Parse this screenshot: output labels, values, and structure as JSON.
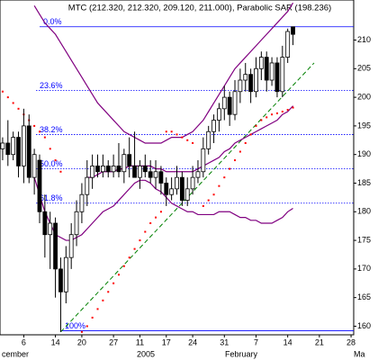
{
  "chart_data": {
    "type": "candlestick",
    "title": "MTC (212.320, 212.320, 209.120, 211.000), Parabolic SAR (198.236)",
    "categories": [
      null,
      null,
      null,
      null,
      "6",
      null,
      null,
      null,
      null,
      null,
      "14",
      null,
      null,
      null,
      null,
      "20",
      null,
      null,
      null,
      null,
      null,
      "27",
      null,
      null,
      null,
      null,
      "11",
      null,
      null,
      null,
      null,
      "17",
      null,
      null,
      null,
      null,
      "24",
      null,
      null,
      null,
      null,
      null,
      "31",
      null,
      null,
      null,
      null,
      null,
      "7",
      null,
      null,
      null,
      null,
      null,
      "14",
      null,
      null,
      null,
      null,
      null,
      "21",
      null,
      null,
      null,
      null,
      null,
      "28"
    ],
    "periods": [
      "cember",
      "2005",
      "February",
      "Ma"
    ],
    "ohlc": {
      "open": [
        191,
        192,
        190,
        193,
        188,
        195,
        186,
        189,
        180,
        176,
        178,
        170,
        166,
        172,
        176,
        180,
        183,
        186,
        188,
        187,
        188,
        187,
        188,
        187,
        190,
        188,
        186,
        188,
        187,
        186,
        187,
        185,
        183,
        184,
        186,
        182,
        184,
        186,
        187,
        191,
        194,
        196,
        198,
        200,
        197,
        201,
        203,
        204,
        201,
        205,
        207,
        203,
        206,
        201,
        207,
        212.32,
        null,
        null,
        null,
        null,
        null,
        null,
        null,
        null,
        null,
        null,
        null
      ],
      "high": [
        193,
        196,
        194,
        194,
        198,
        197,
        191,
        190,
        183,
        180,
        179,
        172,
        174,
        178,
        182,
        185,
        189,
        190,
        190,
        190,
        189,
        190,
        192,
        191,
        193,
        194,
        189,
        190,
        189,
        189,
        188,
        186,
        186,
        188,
        187,
        186,
        188,
        189,
        193,
        195,
        197,
        199,
        202,
        201,
        203,
        205,
        206,
        205,
        207,
        208,
        208,
        207,
        207,
        209,
        212,
        212.32,
        null,
        null,
        null,
        null,
        null,
        null,
        null,
        null,
        null,
        null,
        null
      ],
      "low": [
        189,
        188,
        189,
        186,
        185,
        185,
        183,
        178,
        172,
        170,
        165,
        159,
        164,
        170,
        174,
        178,
        181,
        184,
        186,
        186,
        186,
        186,
        186,
        185,
        186,
        186,
        184,
        186,
        185,
        184,
        183,
        181,
        182,
        183,
        181,
        181,
        183,
        185,
        186,
        190,
        192,
        194,
        196,
        195,
        196,
        199,
        201,
        199,
        200,
        203,
        201,
        202,
        200,
        200,
        206,
        209.12,
        null,
        null,
        null,
        null,
        null,
        null,
        null,
        null,
        null,
        null,
        null
      ],
      "close": [
        192,
        190,
        193,
        188,
        195,
        186,
        190,
        180,
        176,
        178,
        170,
        166,
        172,
        176,
        180,
        183,
        186,
        188,
        187,
        188,
        187,
        188,
        187,
        190,
        188,
        186,
        188,
        187,
        186,
        187,
        185,
        183,
        184,
        186,
        182,
        184,
        186,
        187,
        191,
        194,
        196,
        198,
        200,
        197,
        201,
        203,
        204,
        201,
        205,
        207,
        203,
        206,
        201,
        207,
        211.5,
        211,
        null,
        null,
        null,
        null,
        null,
        null,
        null,
        null,
        null,
        null,
        null
      ]
    },
    "lines": [
      {
        "color": "#800080",
        "values": [
          null,
          null,
          null,
          null,
          null,
          null,
          216,
          214.5,
          213,
          212,
          211,
          209.5,
          208,
          206.5,
          205,
          203.5,
          202,
          200.5,
          199,
          198,
          197,
          196,
          195,
          194,
          193.5,
          193,
          192.5,
          192,
          192,
          192,
          192,
          192.5,
          193,
          193,
          193,
          193.5,
          194,
          195,
          196,
          197.5,
          199,
          200.5,
          202,
          203.5,
          205,
          206,
          207,
          208,
          209,
          210,
          211,
          212,
          213,
          214,
          215,
          216.5,
          null,
          null,
          null,
          null,
          null,
          null,
          null,
          null,
          null,
          null,
          null
        ]
      },
      {
        "color": "#800080",
        "values": [
          null,
          null,
          null,
          null,
          null,
          null,
          null,
          null,
          null,
          null,
          null,
          null,
          null,
          null,
          null,
          null,
          186,
          186,
          186.5,
          187,
          187,
          187,
          187.5,
          187.5,
          188,
          188,
          188,
          188,
          188,
          187.5,
          187.5,
          187,
          187,
          187,
          187,
          187,
          187,
          187.5,
          188,
          188.5,
          189,
          189.5,
          190.5,
          191,
          192,
          192.5,
          193,
          193.5,
          194,
          194.5,
          195,
          195.5,
          196,
          197,
          197.5,
          198.5,
          null,
          null,
          null,
          null,
          null,
          null,
          null,
          null,
          null,
          null,
          null
        ]
      },
      {
        "color": "#800080",
        "values": [
          null,
          null,
          null,
          null,
          null,
          null,
          186,
          183,
          180,
          178,
          176,
          175.5,
          175,
          175,
          175.5,
          176,
          177,
          178,
          179,
          180,
          180.5,
          181,
          182,
          183,
          184,
          185,
          185.5,
          185.5,
          185,
          184,
          183.5,
          182.5,
          181.5,
          181,
          180.5,
          180,
          180,
          179.5,
          179.5,
          179.5,
          179.5,
          180,
          180,
          180,
          179.5,
          179,
          179,
          178.5,
          178.5,
          178,
          178,
          178,
          178.5,
          179,
          180,
          180.6,
          null,
          null,
          null,
          null,
          null,
          null,
          null,
          null,
          null,
          null,
          null
        ]
      }
    ],
    "sar": {
      "color": "#ff0000",
      "values": [
        201,
        200,
        199,
        198,
        197,
        196,
        195,
        194,
        193,
        191,
        189,
        187,
        null,
        null,
        null,
        159,
        160,
        161.5,
        163,
        164.5,
        166,
        167.5,
        169,
        170.5,
        172,
        173.5,
        175,
        176.5,
        178,
        179,
        180,
        194,
        194,
        193.5,
        193,
        192.5,
        192,
        null,
        181,
        182,
        183,
        184.5,
        186,
        187.5,
        189,
        190.5,
        192,
        193.5,
        195,
        196,
        196.5,
        197,
        197.2,
        197.5,
        197.8,
        198.2,
        null,
        null,
        null,
        null,
        null,
        null,
        null,
        null,
        null,
        null,
        null
      ]
    },
    "trend_line": {
      "color": "#008000",
      "x": [
        11,
        59
      ],
      "values": [
        159,
        206
      ]
    },
    "fib_levels": [
      {
        "value": 212.32,
        "label": "0.0%"
      },
      {
        "value": 201.2,
        "label": "23.6%"
      },
      {
        "value": 193.5,
        "label": "38.2%"
      },
      {
        "value": 187.5,
        "label": "50.0%"
      },
      {
        "value": 181.5,
        "label": "61.8%"
      },
      {
        "value": 159.2,
        "label": "100%"
      }
    ],
    "fib_color": "#0000ff",
    "ylim": [
      158.5,
      217
    ],
    "yticks": [
      160,
      165,
      170,
      175,
      180,
      185,
      190,
      195,
      200,
      205,
      210
    ]
  }
}
